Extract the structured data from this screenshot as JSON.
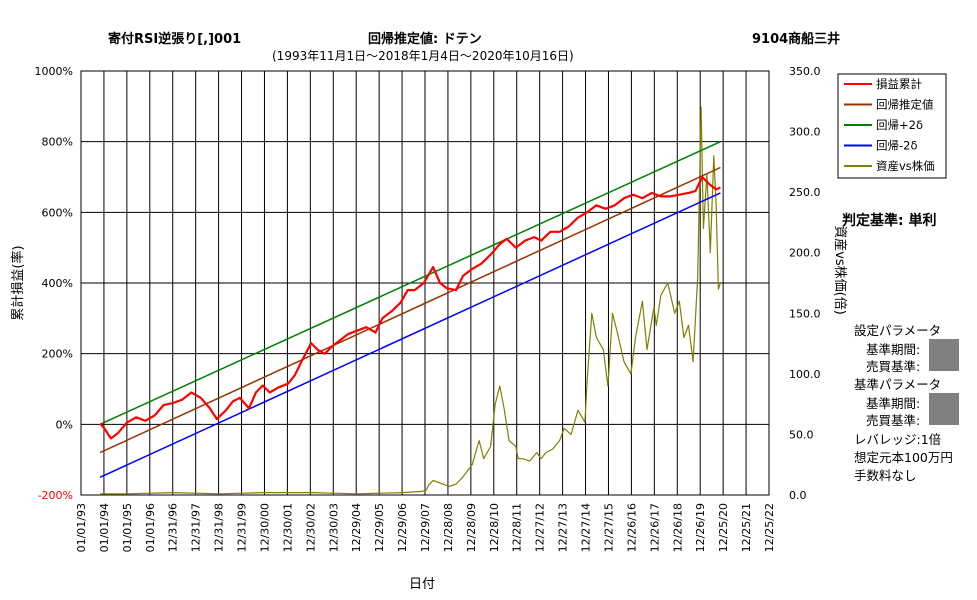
{
  "header": {
    "left": "寄付RSI逆張り[,]001",
    "center": "回帰推定値: ドテン",
    "right": "9104商船三井",
    "subtitle": "(1993年11月1日〜2018年1月4日〜2020年10月16日)"
  },
  "side_panel": {
    "criteria": "判定基準: 単利",
    "setting_params": "設定パラメータ",
    "base_period_1": "基準期間:",
    "trade_basis_1": "売買基準:",
    "base_params": "基準パラメータ",
    "base_period_2": "基準期間:",
    "trade_basis_2": "売買基準:",
    "leverage": "レバレッジ:1倍",
    "principal": "想定元本100万円",
    "fee": "手数料なし"
  },
  "colors": {
    "pnl": "#ff0000",
    "regression": "#993300",
    "upper": "#008000",
    "lower": "#0000ff",
    "asset_ratio": "#808000",
    "frame": "#000000",
    "grid": "#000000",
    "neg_tick": "#ff0000"
  },
  "chart_data": {
    "type": "line",
    "xlabel": "日付",
    "ylabel_left": "累計損益(率)",
    "ylabel_right": "資産vs株価(倍)",
    "left_axis": {
      "min": -200,
      "max": 1000,
      "ticks": [
        "1000%",
        "800%",
        "600%",
        "400%",
        "200%",
        "0%",
        "-200%"
      ]
    },
    "right_axis": {
      "min": 0,
      "max": 350,
      "ticks": [
        "350.0",
        "300.0",
        "250.0",
        "200.0",
        "150.0",
        "100.0",
        "50.0",
        "0.0"
      ]
    },
    "x_range": [
      1993.0,
      2022.9
    ],
    "x_ticks": [
      "01/01/93",
      "01/01/94",
      "01/01/95",
      "01/01/96",
      "12/31/96",
      "12/31/97",
      "12/31/98",
      "12/31/99",
      "12/30/00",
      "12/30/01",
      "12/30/02",
      "12/30/03",
      "12/29/04",
      "12/29/05",
      "12/29/06",
      "12/29/07",
      "12/28/08",
      "12/28/09",
      "12/28/10",
      "12/28/11",
      "12/27/12",
      "12/27/13",
      "12/27/14",
      "12/27/15",
      "12/26/16",
      "12/26/17",
      "12/26/18",
      "12/26/19",
      "12/25/20",
      "12/25/21",
      "12/25/22"
    ],
    "grid": true,
    "legend_position": "top-right",
    "series": [
      {
        "name": "損益累計",
        "axis": "left",
        "x": [
          1993.83,
          1994.0,
          1994.3,
          1994.6,
          1995.0,
          1995.4,
          1995.8,
          1996.2,
          1996.6,
          1997.0,
          1997.4,
          1997.8,
          1998.2,
          1998.6,
          1998.9,
          1999.3,
          1999.6,
          1999.9,
          2000.3,
          2000.6,
          2000.9,
          2001.2,
          2001.6,
          2002.0,
          2002.3,
          2002.6,
          2003.0,
          2003.3,
          2003.6,
          2003.9,
          2004.3,
          2004.6,
          2005.0,
          2005.4,
          2005.8,
          2006.1,
          2006.5,
          2006.9,
          2007.2,
          2007.5,
          2007.9,
          2008.3,
          2008.6,
          2008.9,
          2009.3,
          2009.6,
          2010.0,
          2010.4,
          2010.8,
          2011.2,
          2011.5,
          2011.9,
          2012.3,
          2012.7,
          2013.0,
          2013.4,
          2013.8,
          2014.2,
          2014.6,
          2015.0,
          2015.4,
          2015.8,
          2016.2,
          2016.6,
          2017.0,
          2017.4,
          2017.8,
          2018.2,
          2018.6,
          2019.0,
          2019.4,
          2019.7,
          2020.0,
          2020.3,
          2020.6,
          2020.79
        ],
        "y": [
          2,
          -10,
          -40,
          -25,
          5,
          20,
          10,
          25,
          55,
          60,
          70,
          90,
          75,
          45,
          15,
          40,
          65,
          75,
          45,
          90,
          110,
          90,
          105,
          115,
          140,
          180,
          230,
          210,
          200,
          220,
          240,
          255,
          265,
          275,
          260,
          300,
          320,
          345,
          380,
          380,
          400,
          445,
          400,
          385,
          380,
          420,
          440,
          455,
          480,
          510,
          525,
          500,
          520,
          530,
          520,
          545,
          545,
          560,
          585,
          600,
          620,
          610,
          620,
          640,
          650,
          640,
          655,
          645,
          645,
          650,
          655,
          660,
          700,
          680,
          665,
          670
        ]
      },
      {
        "name": "回帰推定値",
        "axis": "left",
        "x": [
          1993.83,
          2020.79
        ],
        "y": [
          -80,
          727
        ]
      },
      {
        "name": "回帰+2δ",
        "axis": "left",
        "x": [
          1993.83,
          2020.79
        ],
        "y": [
          0,
          800
        ]
      },
      {
        "name": "回帰-2δ",
        "axis": "left",
        "x": [
          1993.83,
          2020.79
        ],
        "y": [
          -150,
          655
        ]
      },
      {
        "name": "資産vs株価",
        "axis": "right",
        "x": [
          1993.83,
          1995.0,
          1997.0,
          1999.0,
          2001.0,
          2003.0,
          2005.0,
          2007.0,
          2007.8,
          2008.0,
          2008.1,
          2008.3,
          2008.6,
          2009.0,
          2009.3,
          2009.6,
          2010.0,
          2010.3,
          2010.5,
          2010.8,
          2011.0,
          2011.2,
          2011.4,
          2011.6,
          2011.9,
          2012.0,
          2012.2,
          2012.5,
          2012.8,
          2013.0,
          2013.2,
          2013.5,
          2013.8,
          2014.0,
          2014.3,
          2014.6,
          2014.9,
          2015.0,
          2015.2,
          2015.4,
          2015.7,
          2015.9,
          2016.1,
          2016.3,
          2016.6,
          2016.9,
          2017.1,
          2017.4,
          2017.6,
          2017.9,
          2018.0,
          2018.2,
          2018.5,
          2018.8,
          2019.0,
          2019.2,
          2019.4,
          2019.6,
          2019.8,
          2019.95,
          2020.05,
          2020.2,
          2020.35,
          2020.5,
          2020.6,
          2020.7,
          2020.79
        ],
        "y": [
          1,
          1,
          2,
          1,
          2,
          2,
          1,
          2,
          3,
          4,
          8,
          12,
          10,
          7,
          9,
          15,
          25,
          45,
          30,
          40,
          75,
          90,
          70,
          45,
          40,
          30,
          30,
          28,
          35,
          30,
          35,
          38,
          45,
          55,
          50,
          70,
          60,
          95,
          150,
          130,
          120,
          90,
          150,
          135,
          110,
          100,
          130,
          160,
          120,
          155,
          140,
          165,
          175,
          150,
          160,
          130,
          140,
          110,
          180,
          320,
          220,
          265,
          200,
          280,
          240,
          170,
          175
        ]
      }
    ]
  }
}
